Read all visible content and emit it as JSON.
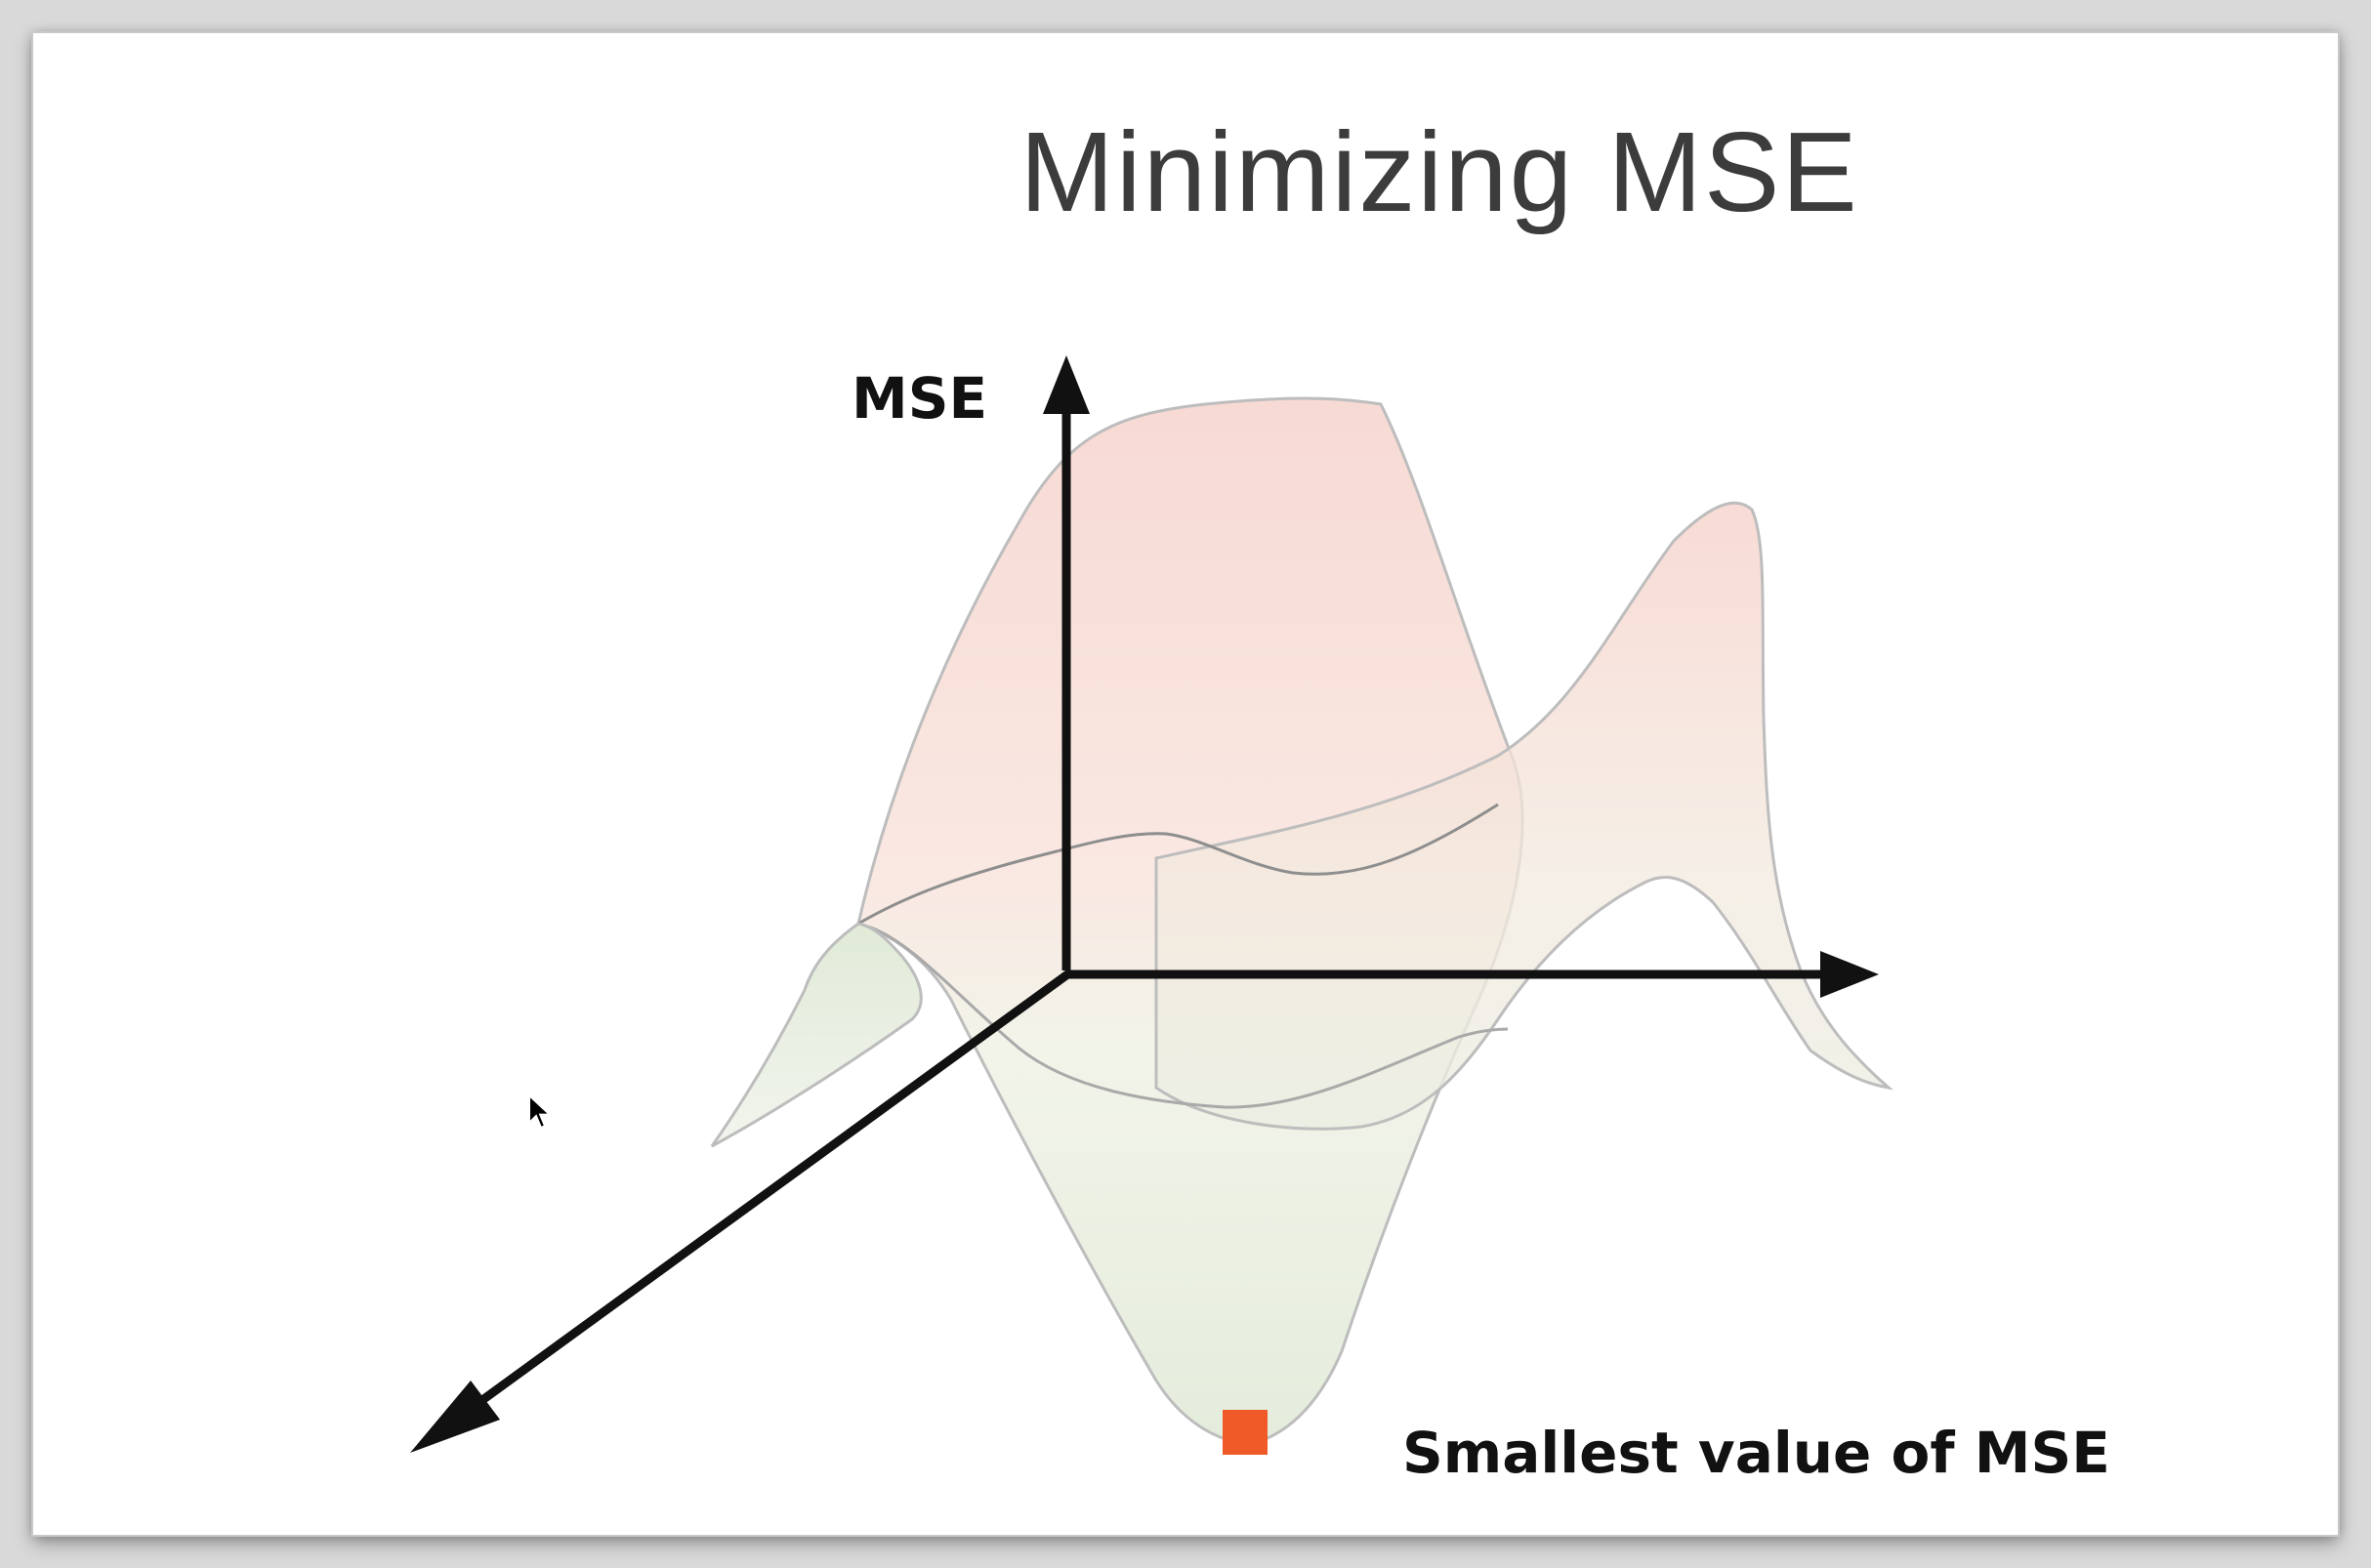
{
  "slide": {
    "title": "Minimizing MSE"
  },
  "diagram": {
    "vertical_axis_label": "MSE",
    "minimum_label": "Smallest value of MSE",
    "minimum_marker_color": "#f05a28",
    "surface_top_color": "#f7d6d0",
    "surface_bottom_color": "#e3ecdc",
    "axis_color": "#111111",
    "outline_color": "#b9b9b9"
  },
  "cursor": {
    "icon": "mouse-pointer-icon"
  }
}
